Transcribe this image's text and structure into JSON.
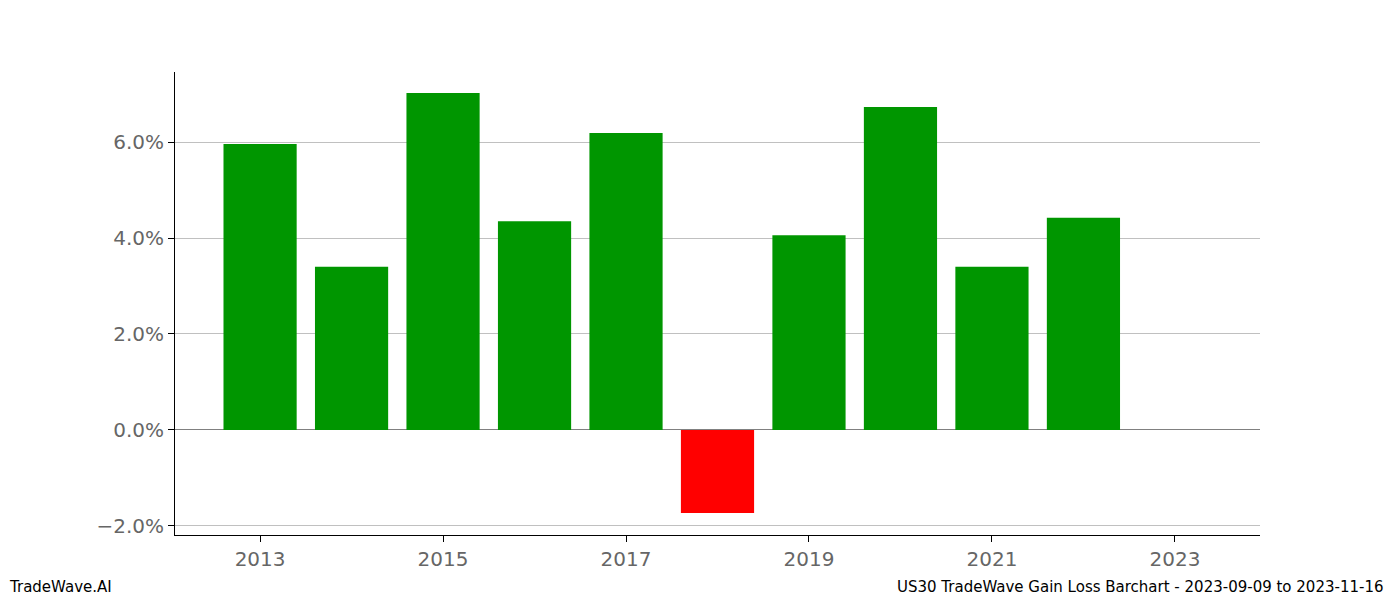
{
  "chart_data": {
    "type": "bar",
    "title": "US30 TradeWave Gain Loss Barchart - 2023-09-09 to 2023-11-16",
    "annotations": [
      "TradeWave.AI"
    ],
    "x": [
      2013,
      2014,
      2015,
      2016,
      2017,
      2018,
      2019,
      2020,
      2021,
      2022
    ],
    "values": [
      5.96,
      3.4,
      7.02,
      4.35,
      6.19,
      -1.73,
      4.06,
      6.73,
      3.4,
      4.42
    ],
    "colors": [
      "#009600",
      "#009600",
      "#009600",
      "#009600",
      "#009600",
      "#ff0000",
      "#009600",
      "#009600",
      "#009600",
      "#009600"
    ],
    "xlim": [
      2012.07,
      2023.93
    ],
    "xticks": [
      2013,
      2015,
      2017,
      2019,
      2021,
      2023
    ],
    "ylim": [
      -2.19,
      7.46
    ],
    "yticks": [
      {
        "value": -2,
        "label": "−2.0%"
      },
      {
        "value": 0,
        "label": "0.0%"
      },
      {
        "value": 2,
        "label": "2.0%"
      },
      {
        "value": 4,
        "label": "4.0%"
      },
      {
        "value": 6,
        "label": "6.0%"
      }
    ],
    "grid": true
  }
}
